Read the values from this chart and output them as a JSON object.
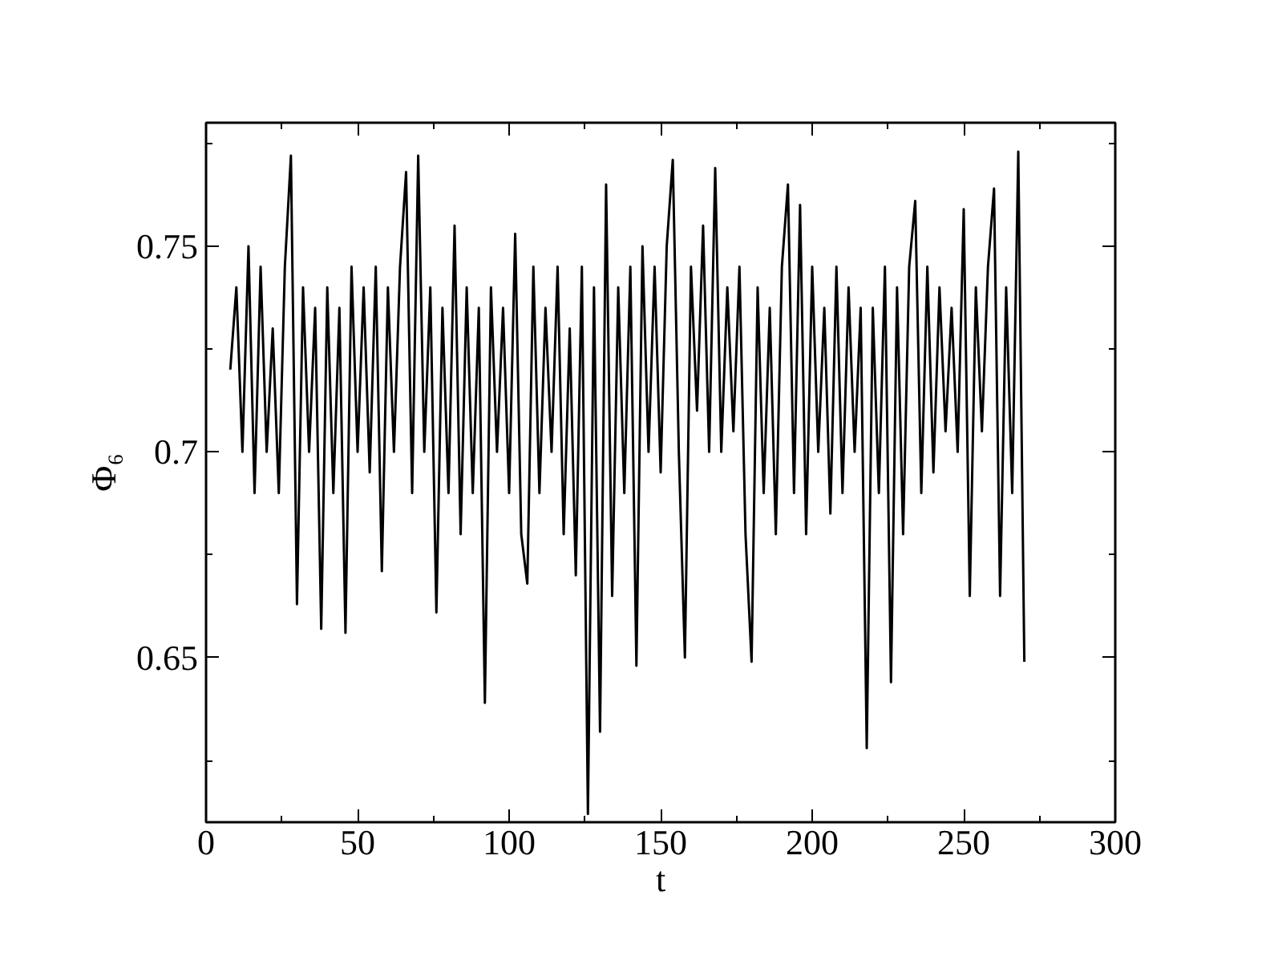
{
  "chart_data": {
    "type": "line",
    "xlabel": "t",
    "ylabel": "Φ₆",
    "xlim": [
      0,
      300
    ],
    "ylim": [
      0.61,
      0.78
    ],
    "xticks": [
      0,
      50,
      100,
      150,
      200,
      250,
      300
    ],
    "yticks": [
      {
        "value": 0.65,
        "label": "0.65"
      },
      {
        "value": 0.7,
        "label": "0.7"
      },
      {
        "value": 0.75,
        "label": "0.75"
      }
    ],
    "grid": false,
    "marker": "none",
    "line_style": "solid",
    "series": [
      {
        "color": "#000000",
        "x": [
          8,
          10,
          12,
          14,
          16,
          18,
          20,
          22,
          24,
          26,
          28,
          30,
          32,
          34,
          36,
          38,
          40,
          42,
          44,
          46,
          48,
          50,
          52,
          54,
          56,
          58,
          60,
          62,
          64,
          66,
          68,
          70,
          72,
          74,
          76,
          78,
          80,
          82,
          84,
          86,
          88,
          90,
          92,
          94,
          96,
          98,
          100,
          102,
          104,
          106,
          108,
          110,
          112,
          114,
          116,
          118,
          120,
          122,
          124,
          126,
          128,
          130,
          132,
          134,
          136,
          138,
          140,
          142,
          144,
          146,
          148,
          150,
          152,
          154,
          156,
          158,
          160,
          162,
          164,
          166,
          168,
          170,
          172,
          174,
          176,
          178,
          180,
          182,
          184,
          186,
          188,
          190,
          192,
          194,
          196,
          198,
          200,
          202,
          204,
          206,
          208,
          210,
          212,
          214,
          216,
          218,
          220,
          222,
          224,
          226,
          228,
          230,
          232,
          234,
          236,
          238,
          240,
          242,
          244,
          246,
          248,
          250,
          252,
          254,
          256,
          258,
          260,
          262,
          264,
          266,
          268,
          270
        ],
        "values": [
          0.72,
          0.74,
          0.7,
          0.75,
          0.69,
          0.745,
          0.7,
          0.73,
          0.69,
          0.745,
          0.772,
          0.663,
          0.74,
          0.7,
          0.735,
          0.657,
          0.74,
          0.69,
          0.735,
          0.656,
          0.745,
          0.7,
          0.74,
          0.695,
          0.745,
          0.671,
          0.74,
          0.7,
          0.745,
          0.768,
          0.69,
          0.772,
          0.7,
          0.74,
          0.661,
          0.735,
          0.69,
          0.755,
          0.68,
          0.74,
          0.69,
          0.735,
          0.639,
          0.74,
          0.7,
          0.735,
          0.69,
          0.753,
          0.68,
          0.668,
          0.745,
          0.69,
          0.735,
          0.7,
          0.745,
          0.68,
          0.73,
          0.67,
          0.745,
          0.612,
          0.74,
          0.632,
          0.765,
          0.665,
          0.74,
          0.69,
          0.745,
          0.648,
          0.75,
          0.7,
          0.745,
          0.695,
          0.75,
          0.771,
          0.7,
          0.65,
          0.745,
          0.71,
          0.755,
          0.7,
          0.769,
          0.7,
          0.74,
          0.705,
          0.745,
          0.68,
          0.649,
          0.74,
          0.69,
          0.735,
          0.68,
          0.745,
          0.765,
          0.69,
          0.76,
          0.68,
          0.745,
          0.7,
          0.735,
          0.685,
          0.745,
          0.69,
          0.74,
          0.7,
          0.735,
          0.628,
          0.735,
          0.69,
          0.745,
          0.644,
          0.74,
          0.68,
          0.745,
          0.761,
          0.69,
          0.745,
          0.695,
          0.74,
          0.705,
          0.735,
          0.7,
          0.759,
          0.665,
          0.74,
          0.705,
          0.745,
          0.764,
          0.665,
          0.74,
          0.69,
          0.773,
          0.649
        ]
      }
    ]
  }
}
